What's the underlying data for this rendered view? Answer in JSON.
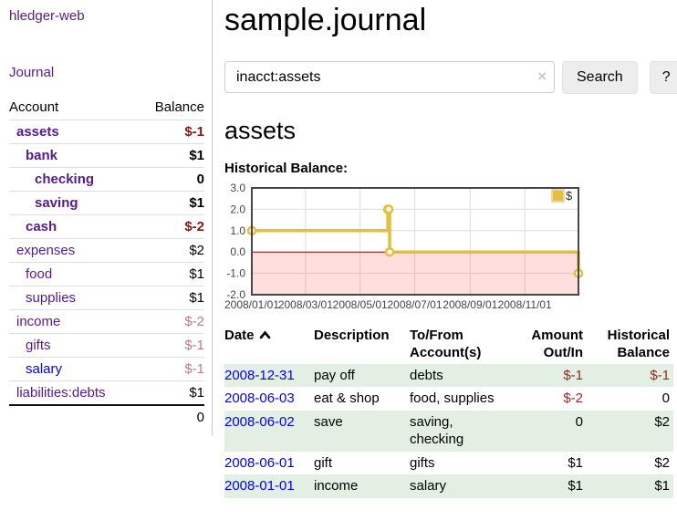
{
  "sidebar": {
    "brand": "hledger-web",
    "journal_link": "Journal",
    "accounts_table": {
      "headers": {
        "account": "Account",
        "balance": "Balance"
      },
      "rows": [
        {
          "name": "assets",
          "depth": 1,
          "bold": true,
          "balance": "$-1",
          "balance_style": "neg-bold"
        },
        {
          "name": "bank",
          "depth": 2,
          "bold": true,
          "balance": "$1",
          "balance_style": "bold"
        },
        {
          "name": "checking",
          "depth": 3,
          "bold": true,
          "balance": "0",
          "balance_style": "bold"
        },
        {
          "name": "saving",
          "depth": 3,
          "bold": true,
          "balance": "$1",
          "balance_style": "bold"
        },
        {
          "name": "cash",
          "depth": 2,
          "bold": true,
          "balance": "$-2",
          "balance_style": "neg-bold"
        },
        {
          "name": "expenses",
          "depth": 1,
          "bold": false,
          "balance": "$2",
          "balance_style": "plain"
        },
        {
          "name": "food",
          "depth": 2,
          "bold": false,
          "balance": "$1",
          "balance_style": "plain"
        },
        {
          "name": "supplies",
          "depth": 2,
          "bold": false,
          "balance": "$1",
          "balance_style": "plain"
        },
        {
          "name": "income",
          "depth": 1,
          "bold": false,
          "balance": "$-2",
          "balance_style": "neg-faded"
        },
        {
          "name": "gifts",
          "depth": 2,
          "bold": false,
          "balance": "$-1",
          "balance_style": "neg-faded"
        },
        {
          "name": "salary",
          "depth": 2,
          "bold": false,
          "link_color": "blue",
          "balance": "$-1",
          "balance_style": "neg-faded"
        },
        {
          "name": "liabilities:debts",
          "depth": 1,
          "bold": false,
          "balance": "$1",
          "balance_style": "plain"
        }
      ],
      "total": "0"
    }
  },
  "main": {
    "title": "sample.journal",
    "search": {
      "value": "inacct:assets",
      "clear_icon": "×",
      "search_button": "Search",
      "help_button": "?"
    },
    "account_heading": "assets",
    "chart_heading": "Historical Balance:",
    "register_table": {
      "headers": {
        "date": "Date",
        "description": "Description",
        "to_from": "To/From\nAccount(s)",
        "amount": "Amount\nOut/In",
        "historical": "Historical\nBalance"
      },
      "sort_icon": "chevron-up",
      "rows": [
        {
          "date": "2008-12-31",
          "description": "pay off",
          "to_from": "debts",
          "amount": "$-1",
          "amount_neg": true,
          "historical": "$-1",
          "historical_neg": true
        },
        {
          "date": "2008-06-03",
          "description": "eat & shop",
          "to_from": "food, supplies",
          "amount": "$-2",
          "amount_neg": true,
          "historical": "0",
          "historical_neg": false
        },
        {
          "date": "2008-06-02",
          "description": "save",
          "to_from": "saving,\nchecking",
          "amount": "0",
          "amount_neg": false,
          "historical": "$2",
          "historical_neg": false
        },
        {
          "date": "2008-06-01",
          "description": "gift",
          "to_from": "gifts",
          "amount": "$1",
          "amount_neg": false,
          "historical": "$2",
          "historical_neg": false
        },
        {
          "date": "2008-01-01",
          "description": "income",
          "to_from": "salary",
          "amount": "$1",
          "amount_neg": false,
          "historical": "$1",
          "historical_neg": false
        }
      ]
    }
  },
  "chart_data": {
    "type": "line",
    "title": "Historical Balance:",
    "step": true,
    "series": [
      {
        "name": "$",
        "points": [
          {
            "date": "2008-01-01",
            "day": 0,
            "value": 1
          },
          {
            "date": "2008-06-01",
            "day": 152,
            "value": 2
          },
          {
            "date": "2008-06-02",
            "day": 153,
            "value": 2
          },
          {
            "date": "2008-06-03",
            "day": 154,
            "value": 0
          },
          {
            "date": "2008-12-31",
            "day": 365,
            "value": -1
          }
        ]
      }
    ],
    "xlim_days": [
      0,
      365
    ],
    "ylim": [
      -2,
      3
    ],
    "yticks": [
      "3.0",
      "2.0",
      "1.0",
      "0.0",
      "-1.0",
      "-2.0"
    ],
    "xticks": [
      {
        "label": "2008/01/01",
        "day": 0
      },
      {
        "label": "2008/03/01",
        "day": 60
      },
      {
        "label": "2008/05/01",
        "day": 121
      },
      {
        "label": "2008/07/01",
        "day": 182
      },
      {
        "label": "2008/09/01",
        "day": 244
      },
      {
        "label": "2008/11/01",
        "day": 305
      }
    ],
    "legend": {
      "label": "$",
      "position": "top-right"
    },
    "grid": true,
    "negative_region_shaded": true,
    "colors": {
      "line": "#e4bf3e",
      "marker_fill": "#ffffff",
      "negative_region": "rgba(255,0,0,0.13)",
      "zero_line": "#a00000",
      "grid": "#dcdcdc",
      "border": "#474747",
      "legend_box_stroke": "#ead9a2",
      "tick_text": "#444444"
    }
  },
  "colors": {
    "link_purple": "#551a8b",
    "link_blue": "#0000ee",
    "negative_strong": "#8b1515",
    "negative": "#9b2424",
    "negative_faded": "#b97e7e",
    "row_stripe_green": "#e2efe2",
    "button_bg": "#ededed"
  }
}
